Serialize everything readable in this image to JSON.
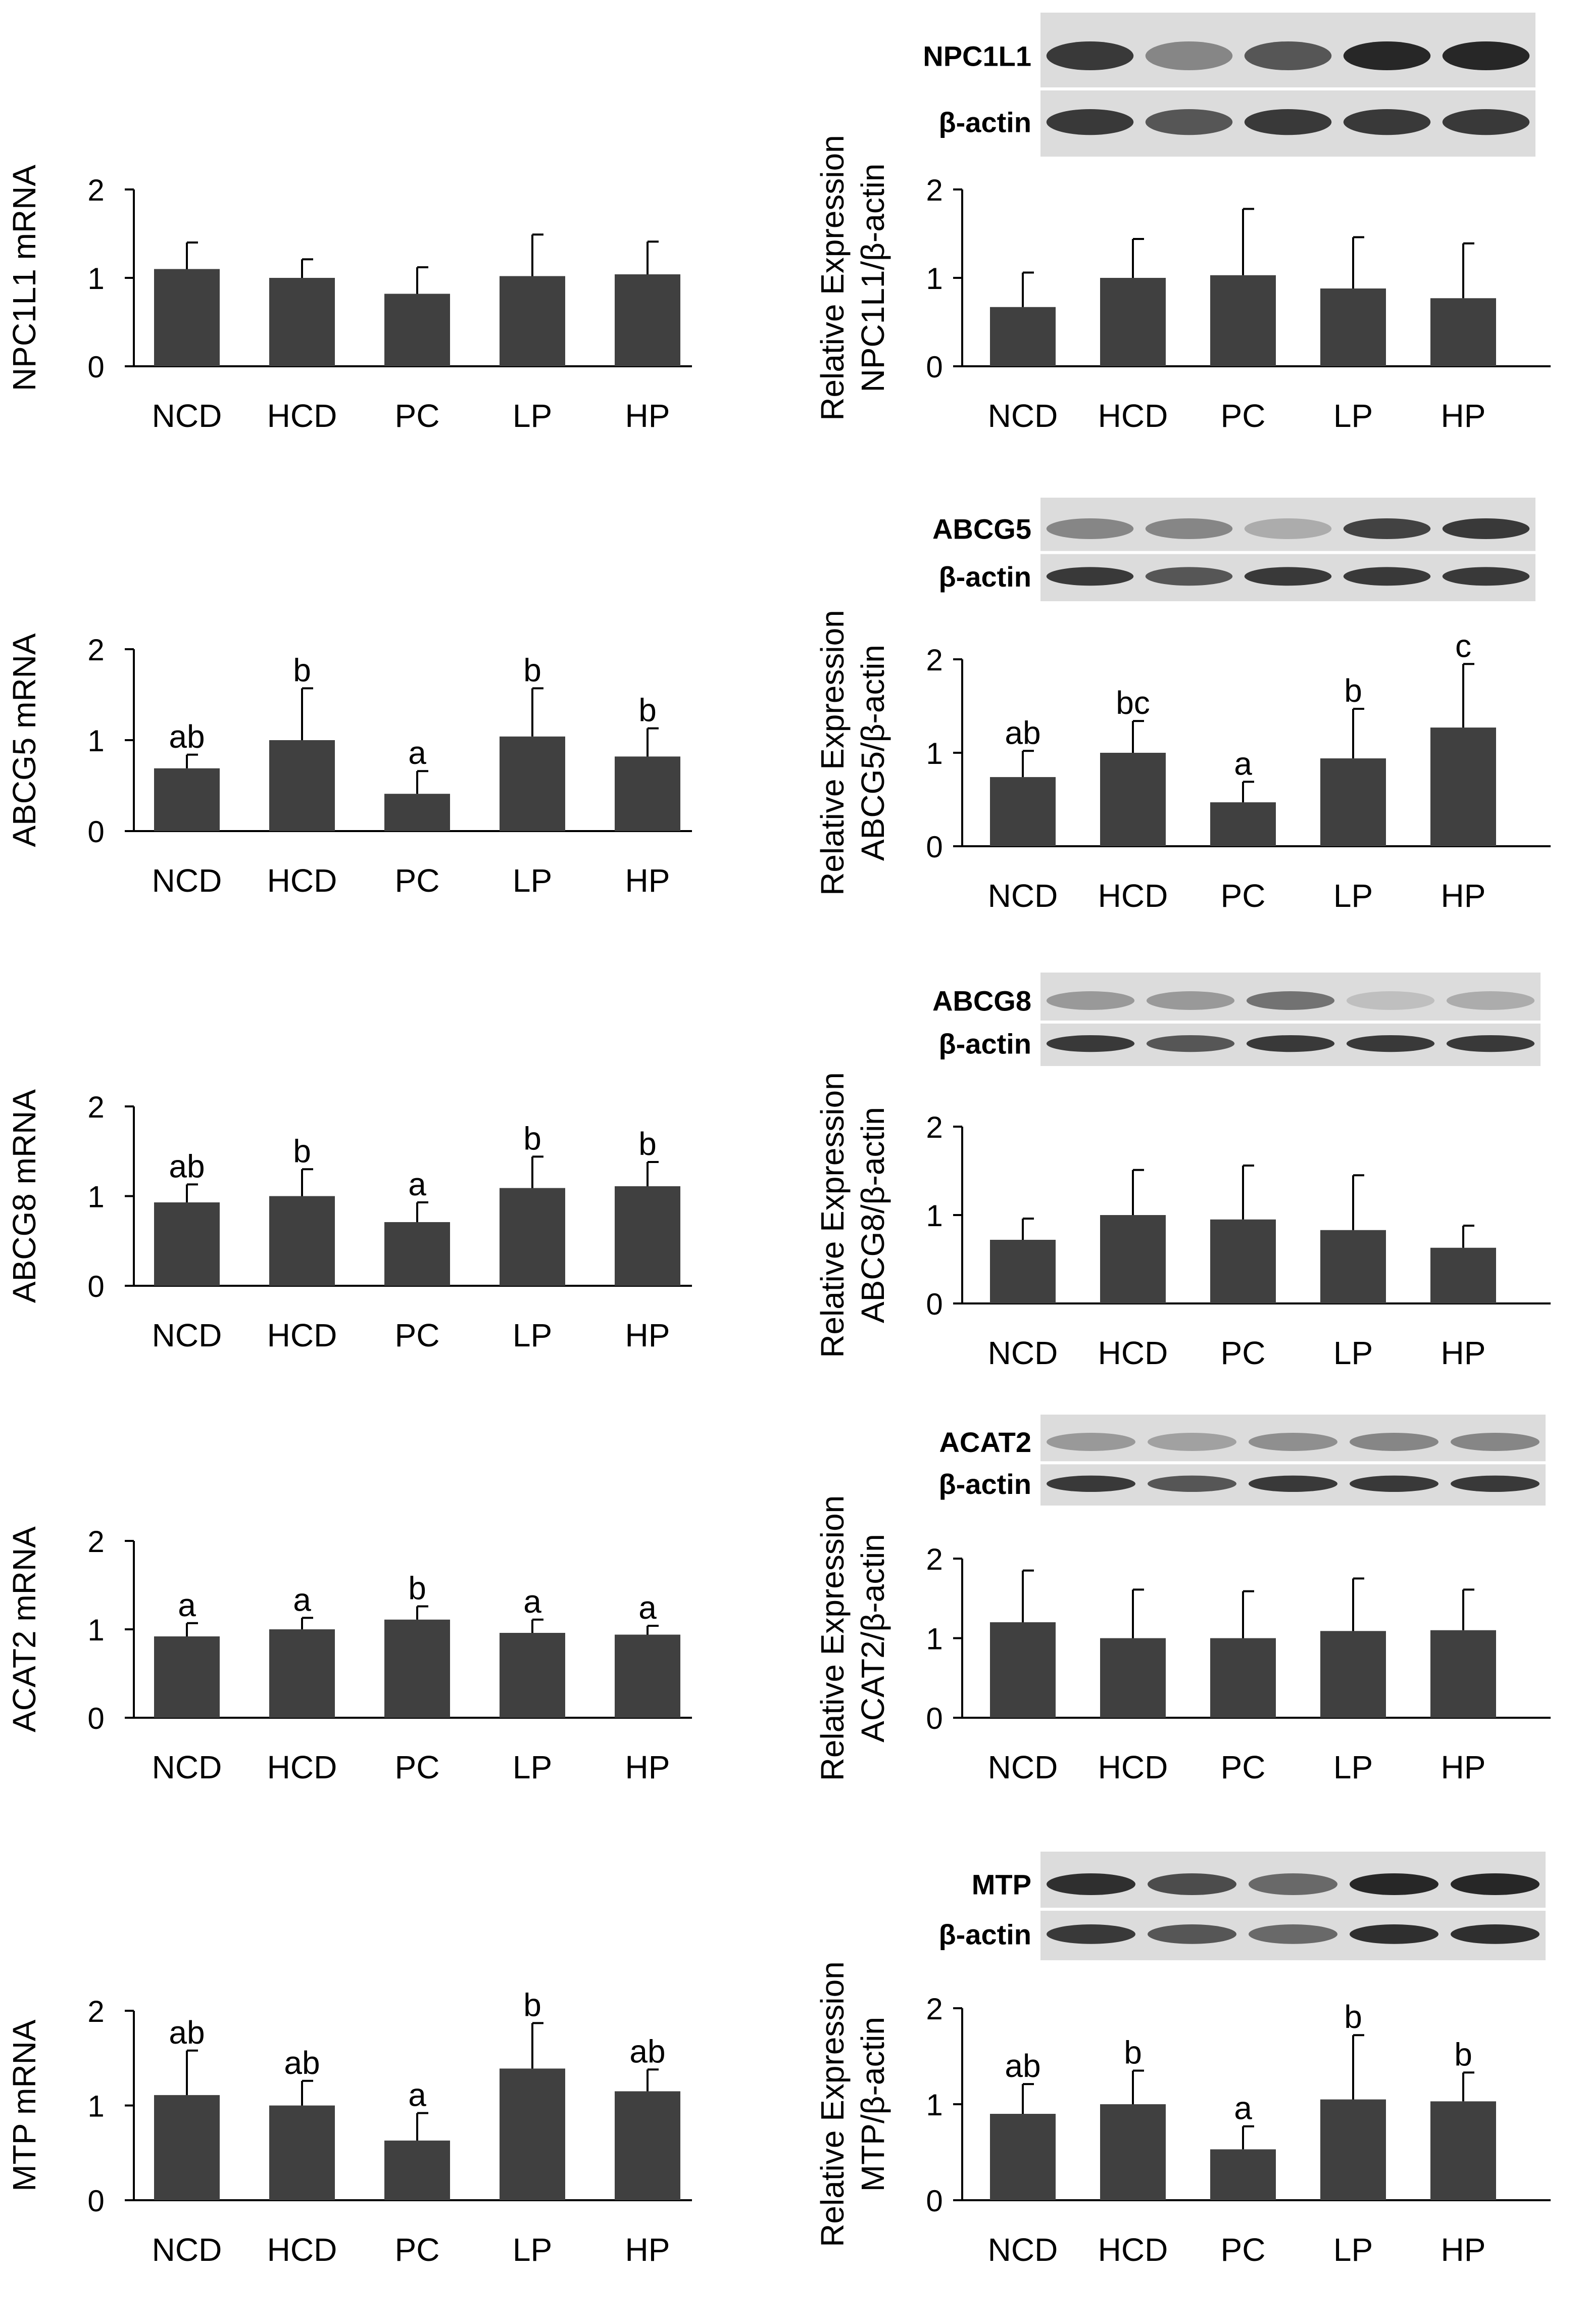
{
  "groups": [
    "NCD",
    "HCD",
    "PC",
    "LP",
    "HP"
  ],
  "colors": {
    "bar": "#404040",
    "axis": "#000000",
    "blot_bg": "#dcdcdc",
    "band": "#1c1c1c"
  },
  "chart_data": [
    {
      "id": "npc1l1-mrna",
      "type": "bar",
      "ylabel": [
        "NPC1L1 mRNA"
      ],
      "ylim": [
        0,
        2
      ],
      "yticks": [
        "0",
        "1",
        "2"
      ],
      "categories": [
        "NCD",
        "HCD",
        "PC",
        "LP",
        "HP"
      ],
      "values": [
        1.1,
        1.0,
        0.82,
        1.02,
        1.04
      ],
      "errors": [
        0.3,
        0.21,
        0.3,
        0.47,
        0.37
      ],
      "letters": [
        "",
        "",
        "",
        "",
        ""
      ]
    },
    {
      "id": "npc1l1-protein",
      "type": "bar",
      "ylabel": [
        "Relative Expression",
        "NPC1L1/β-actin"
      ],
      "ylim": [
        0,
        2
      ],
      "yticks": [
        "0",
        "1",
        "2"
      ],
      "categories": [
        "NCD",
        "HCD",
        "PC",
        "LP",
        "HP"
      ],
      "values": [
        0.67,
        1.0,
        1.03,
        0.88,
        0.77
      ],
      "errors": [
        0.39,
        0.44,
        0.75,
        0.58,
        0.62
      ],
      "letters": [
        "",
        "",
        "",
        "",
        ""
      ],
      "blot": {
        "protein_label": "NPC1L1",
        "loading_label": "β-actin",
        "protein_intensity": [
          0.85,
          0.45,
          0.7,
          0.95,
          0.95
        ],
        "loading_intensity": [
          0.85,
          0.7,
          0.85,
          0.85,
          0.85
        ]
      }
    },
    {
      "id": "abcg5-mrna",
      "type": "bar",
      "ylabel": [
        "ABCG5 mRNA"
      ],
      "ylim": [
        0,
        2
      ],
      "yticks": [
        "0",
        "1",
        "2"
      ],
      "categories": [
        "NCD",
        "HCD",
        "PC",
        "LP",
        "HP"
      ],
      "values": [
        0.69,
        1.0,
        0.41,
        1.04,
        0.82
      ],
      "errors": [
        0.15,
        0.57,
        0.25,
        0.53,
        0.31
      ],
      "letters": [
        "ab",
        "b",
        "a",
        "b",
        "b"
      ]
    },
    {
      "id": "abcg5-protein",
      "type": "bar",
      "ylabel": [
        "Relative Expression",
        "ABCG5/β-actin"
      ],
      "ylim": [
        0,
        2
      ],
      "yticks": [
        "0",
        "1",
        "2"
      ],
      "categories": [
        "NCD",
        "HCD",
        "PC",
        "LP",
        "HP"
      ],
      "values": [
        0.74,
        1.0,
        0.47,
        0.94,
        1.27
      ],
      "errors": [
        0.28,
        0.34,
        0.22,
        0.53,
        0.68
      ],
      "letters": [
        "ab",
        "bc",
        "a",
        "b",
        "c"
      ],
      "blot": {
        "protein_label": "ABCG5",
        "loading_label": "β-actin",
        "protein_intensity": [
          0.45,
          0.45,
          0.25,
          0.8,
          0.85
        ],
        "loading_intensity": [
          0.85,
          0.7,
          0.85,
          0.85,
          0.85
        ]
      }
    },
    {
      "id": "abcg8-mrna",
      "type": "bar",
      "ylabel": [
        "ABCG8 mRNA"
      ],
      "ylim": [
        0,
        2
      ],
      "yticks": [
        "0",
        "1",
        "2"
      ],
      "categories": [
        "NCD",
        "HCD",
        "PC",
        "LP",
        "HP"
      ],
      "values": [
        0.93,
        1.0,
        0.71,
        1.09,
        1.11
      ],
      "errors": [
        0.2,
        0.3,
        0.22,
        0.35,
        0.27
      ],
      "letters": [
        "ab",
        "b",
        "a",
        "b",
        "b"
      ]
    },
    {
      "id": "abcg8-protein",
      "type": "bar",
      "ylabel": [
        "Relative Expression",
        "ABCG8/β-actin"
      ],
      "ylim": [
        0,
        2
      ],
      "yticks": [
        "0",
        "1",
        "2"
      ],
      "categories": [
        "NCD",
        "HCD",
        "PC",
        "LP",
        "HP"
      ],
      "values": [
        0.72,
        1.0,
        0.95,
        0.83,
        0.63
      ],
      "errors": [
        0.24,
        0.51,
        0.61,
        0.62,
        0.25
      ],
      "letters": [
        "",
        "",
        "",
        "",
        ""
      ],
      "blot": {
        "protein_label": "ABCG8",
        "loading_label": "β-actin",
        "protein_intensity": [
          0.35,
          0.35,
          0.55,
          0.15,
          0.25
        ],
        "loading_intensity": [
          0.85,
          0.7,
          0.85,
          0.85,
          0.85
        ]
      }
    },
    {
      "id": "acat2-mrna",
      "type": "bar",
      "ylabel": [
        "ACAT2 mRNA"
      ],
      "ylim": [
        0,
        2
      ],
      "yticks": [
        "0",
        "1",
        "2"
      ],
      "categories": [
        "NCD",
        "HCD",
        "PC",
        "LP",
        "HP"
      ],
      "values": [
        0.92,
        1.0,
        1.11,
        0.96,
        0.94
      ],
      "errors": [
        0.15,
        0.13,
        0.15,
        0.15,
        0.1
      ],
      "letters": [
        "a",
        "a",
        "b",
        "a",
        "a"
      ]
    },
    {
      "id": "acat2-protein",
      "type": "bar",
      "ylabel": [
        "Relative Expression",
        "ACAT2/β-actin"
      ],
      "ylim": [
        0,
        2
      ],
      "yticks": [
        "0",
        "1",
        "2"
      ],
      "categories": [
        "NCD",
        "HCD",
        "PC",
        "LP",
        "HP"
      ],
      "values": [
        1.2,
        1.0,
        1.0,
        1.09,
        1.1
      ],
      "errors": [
        0.65,
        0.61,
        0.59,
        0.66,
        0.51
      ],
      "letters": [
        "",
        "",
        "",
        "",
        ""
      ],
      "blot": {
        "protein_label": "ACAT2",
        "loading_label": "β-actin",
        "protein_intensity": [
          0.35,
          0.3,
          0.4,
          0.45,
          0.45
        ],
        "loading_intensity": [
          0.85,
          0.7,
          0.85,
          0.85,
          0.85
        ]
      }
    },
    {
      "id": "mtp-mrna",
      "type": "bar",
      "ylabel": [
        "MTP mRNA"
      ],
      "ylim": [
        0,
        2
      ],
      "yticks": [
        "0",
        "1",
        "2"
      ],
      "categories": [
        "NCD",
        "HCD",
        "PC",
        "LP",
        "HP"
      ],
      "values": [
        1.11,
        1.0,
        0.63,
        1.39,
        1.15
      ],
      "errors": [
        0.47,
        0.26,
        0.29,
        0.48,
        0.23
      ],
      "letters": [
        "ab",
        "ab",
        "a",
        "b",
        "ab"
      ]
    },
    {
      "id": "mtp-protein",
      "type": "bar",
      "ylabel": [
        "Relative Expression",
        "MTP/β-actin"
      ],
      "ylim": [
        0,
        2
      ],
      "yticks": [
        "0",
        "1",
        "2"
      ],
      "categories": [
        "NCD",
        "HCD",
        "PC",
        "LP",
        "HP"
      ],
      "values": [
        0.9,
        1.0,
        0.53,
        1.05,
        1.03
      ],
      "errors": [
        0.31,
        0.35,
        0.24,
        0.67,
        0.3
      ],
      "letters": [
        "ab",
        "b",
        "a",
        "b",
        "b"
      ],
      "blot": {
        "protein_label": "MTP",
        "loading_label": "β-actin",
        "protein_intensity": [
          0.9,
          0.75,
          0.6,
          0.95,
          0.95
        ],
        "loading_intensity": [
          0.85,
          0.7,
          0.6,
          0.9,
          0.9
        ]
      }
    }
  ]
}
